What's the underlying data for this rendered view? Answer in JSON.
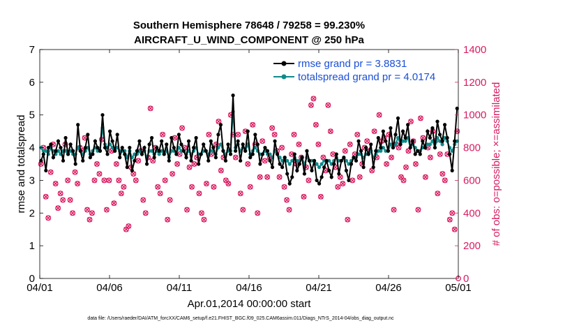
{
  "chart_data": {
    "type": "line",
    "title_line1": "Southern Hemisphere 78648 / 79258 = 99.230%",
    "title_line2": "AIRCRAFT_U_WIND_COMPONENT @ 250 hPa",
    "ylabel_left": "rmse and totalspread",
    "ylabel_right": "# of obs: o=possible; ×=assimilated",
    "xlabel": "Apr.01,2014 00:00:00 start",
    "footnote": "data file: /Users/raeder/DAI/ATM_forcXX/CAM6_setup/f.e21.FHIST_BGC.f09_025.CAM6assim.011/Diags_NTrS_2014-04/obs_diag_output.nc",
    "x_ticks": [
      "04/01",
      "04/06",
      "04/11",
      "04/16",
      "04/21",
      "04/26",
      "05/01"
    ],
    "y_left_ticks": [
      "0",
      "1",
      "2",
      "3",
      "4",
      "5",
      "6",
      "7"
    ],
    "y_right_ticks": [
      "0",
      "200",
      "400",
      "600",
      "800",
      "1000",
      "1200",
      "1400"
    ],
    "ylim_left": [
      0,
      7
    ],
    "ylim_right": [
      0,
      1400
    ],
    "xlim_days": [
      0,
      30
    ],
    "colors": {
      "rmse": "#000000",
      "spread": "#0f8a8a",
      "obs": "#d81b60",
      "legend_text": "#1a4fd6",
      "right_axis": "#d81b60"
    },
    "series": [
      {
        "name": "rmse",
        "legend": "rmse grand pr = 3.8831",
        "values": [
          3.6,
          3.8,
          3.3,
          4.0,
          4.1,
          3.7,
          3.9,
          4.2,
          4.0,
          3.6,
          4.3,
          3.8,
          4.1,
          3.9,
          3.5,
          4.7,
          3.9,
          3.6,
          4.0,
          4.4,
          3.7,
          3.8,
          4.2,
          4.0,
          3.9,
          5.0,
          4.0,
          3.8,
          4.5,
          4.2,
          3.9,
          4.4,
          3.7,
          4.0,
          3.8,
          3.4,
          4.0,
          3.3,
          3.6,
          3.9,
          4.2,
          3.8,
          4.0,
          3.5,
          4.1,
          4.3,
          3.7,
          4.0,
          3.9,
          4.2,
          3.8,
          4.1,
          3.6,
          4.3,
          4.0,
          3.8,
          4.4,
          4.1,
          3.9,
          3.7,
          4.2,
          3.6,
          4.0,
          4.3,
          3.5,
          3.8,
          4.1,
          3.9,
          3.6,
          4.2,
          4.0,
          3.7,
          4.4,
          4.7,
          3.9,
          3.6,
          4.1,
          3.8,
          5.6,
          3.9,
          4.2,
          3.6,
          4.1,
          3.9,
          4.5,
          3.7,
          3.8,
          4.4,
          4.1,
          3.5,
          3.8,
          4.0,
          3.9,
          3.6,
          3.4,
          4.2,
          3.8,
          3.5,
          3.4,
          3.7,
          3.2,
          2.9,
          3.1,
          3.8,
          3.3,
          3.5,
          3.7,
          3.2,
          3.9,
          3.6,
          3.3,
          3.6,
          3.0,
          2.9,
          3.1,
          3.4,
          3.6,
          3.3,
          3.1,
          3.5,
          3.8,
          3.2,
          3.6,
          3.7,
          3.3,
          3.0,
          3.5,
          3.7,
          3.6,
          4.2,
          3.9,
          3.4,
          4.0,
          3.8,
          4.1,
          3.4,
          3.9,
          4.3,
          4.0,
          4.5,
          4.2,
          3.9,
          4.6,
          4.0,
          4.4,
          4.9,
          4.1,
          4.5,
          4.3,
          4.7,
          4.0,
          4.2,
          3.8,
          3.9,
          3.8,
          4.2,
          4.0,
          4.5,
          4.3,
          4.6,
          4.0,
          4.8,
          4.4,
          4.2,
          4.7,
          4.3,
          3.8,
          3.3,
          4.2,
          5.2
        ]
      },
      {
        "name": "totalspread",
        "legend": "totalspread grand pr = 4.0174",
        "values": [
          4.0,
          3.9,
          3.9,
          3.8,
          4.0,
          3.9,
          3.8,
          3.9,
          3.8,
          3.9,
          3.9,
          3.8,
          3.9,
          3.8,
          3.8,
          4.0,
          3.9,
          3.8,
          3.9,
          4.0,
          3.8,
          3.9,
          4.0,
          3.9,
          3.9,
          4.6,
          4.1,
          4.0,
          4.1,
          4.0,
          3.9,
          4.0,
          3.9,
          3.9,
          3.9,
          3.7,
          3.9,
          3.7,
          3.8,
          3.8,
          3.9,
          3.8,
          3.9,
          3.7,
          3.9,
          3.9,
          3.8,
          3.9,
          3.8,
          3.9,
          3.8,
          3.9,
          3.7,
          3.9,
          3.9,
          3.8,
          4.0,
          3.9,
          3.9,
          3.8,
          3.9,
          3.8,
          3.9,
          4.0,
          3.8,
          3.8,
          3.9,
          3.9,
          3.8,
          3.9,
          3.9,
          3.8,
          4.0,
          4.1,
          3.9,
          3.8,
          3.9,
          3.9,
          5.1,
          4.0,
          4.1,
          3.9,
          4.0,
          3.9,
          4.1,
          3.8,
          3.9,
          4.0,
          3.9,
          3.8,
          3.8,
          3.9,
          3.8,
          3.8,
          3.7,
          3.9,
          3.8,
          3.7,
          3.6,
          3.7,
          3.6,
          3.5,
          3.6,
          3.7,
          3.6,
          3.6,
          3.7,
          3.5,
          3.7,
          3.6,
          3.6,
          3.6,
          3.5,
          3.4,
          3.5,
          3.6,
          3.6,
          3.6,
          3.5,
          3.6,
          3.7,
          3.6,
          3.6,
          3.7,
          3.6,
          3.5,
          3.6,
          3.7,
          3.7,
          3.8,
          3.8,
          3.7,
          3.8,
          3.8,
          3.9,
          3.7,
          3.8,
          3.9,
          3.9,
          4.0,
          3.9,
          3.9,
          4.1,
          4.0,
          4.1,
          4.3,
          4.1,
          4.2,
          4.2,
          4.3,
          4.0,
          4.1,
          4.0,
          3.9,
          3.9,
          4.0,
          4.0,
          4.1,
          4.1,
          4.2,
          4.0,
          4.3,
          4.2,
          4.1,
          4.3,
          4.2,
          4.0,
          3.9,
          4.1,
          4.2
        ]
      }
    ],
    "obs_counts": [
      700,
      800,
      500,
      370,
      650,
      820,
      580,
      430,
      520,
      480,
      820,
      600,
      480,
      400,
      650,
      580,
      800,
      780,
      860,
      420,
      360,
      400,
      600,
      700,
      640,
      850,
      600,
      420,
      600,
      780,
      460,
      700,
      600,
      520,
      560,
      300,
      320,
      680,
      640,
      600,
      720,
      780,
      480,
      400,
      740,
      1040,
      720,
      800,
      560,
      520,
      880,
      600,
      360,
      480,
      640,
      860,
      700,
      760,
      920,
      800,
      420,
      680,
      560,
      700,
      740,
      520,
      400,
      360,
      580,
      880,
      760,
      560,
      820,
      960,
      660,
      740,
      600,
      580,
      1000,
      880,
      740,
      880,
      520,
      420,
      900,
      700,
      560,
      940,
      820,
      400,
      620,
      840,
      720,
      620,
      740,
      920,
      880,
      780,
      620,
      800,
      560,
      480,
      420,
      760,
      880,
      700,
      820,
      740,
      500,
      680,
      600,
      1060,
      1100,
      940,
      820,
      500,
      740,
      660,
      1060,
      900,
      760,
      680,
      560,
      620,
      580,
      780,
      360,
      820,
      600,
      760,
      880,
      620,
      700,
      800,
      840,
      780,
      660,
      900,
      740,
      1000,
      840,
      860,
      700,
      880,
      740,
      420,
      820,
      800,
      620,
      600,
      680,
      780,
      960,
      840,
      700,
      420,
      980,
      860,
      620,
      800,
      740,
      900,
      840,
      520,
      760,
      640,
      600,
      760,
      360,
      400,
      300,
      900
    ]
  }
}
